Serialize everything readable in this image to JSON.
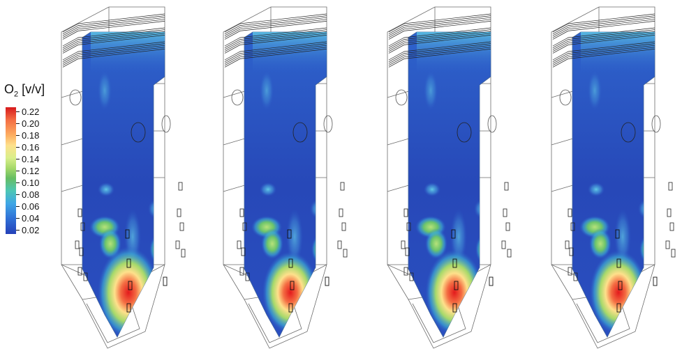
{
  "legend": {
    "title_main": "O",
    "title_sub": "2",
    "title_unit": " [v/v]",
    "ticks": [
      "0.22",
      "0.20",
      "0.18",
      "0.16",
      "0.14",
      "0.12",
      "0.10",
      "0.08",
      "0.06",
      "0.04",
      "0.02"
    ]
  },
  "panels": [
    {
      "hotspot_level": 1.0
    },
    {
      "hotspot_level": 0.6
    },
    {
      "hotspot_level": 0.75
    },
    {
      "hotspot_level": 0.7
    }
  ]
}
